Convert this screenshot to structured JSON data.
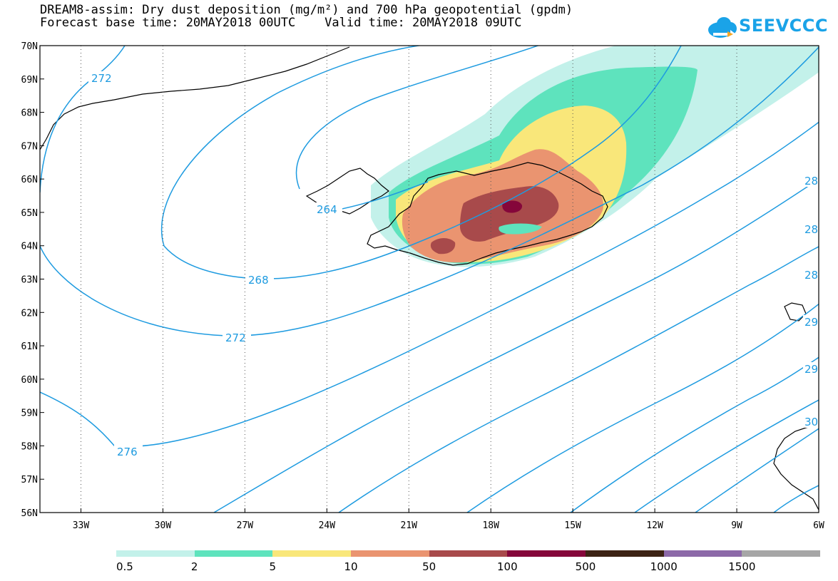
{
  "title": {
    "line1": "DREAM8-assim: Dry dust deposition (mg/m²) and 700 hPa geopotential (gpdm)",
    "line2": "Forecast base time: 20MAY2018 00UTC    Valid time: 20MAY2018 09UTC"
  },
  "logo": {
    "text": "SEEVCCC",
    "icon": "cloud-arrow-icon",
    "color": "#1aa3e8"
  },
  "map": {
    "lat_labels": [
      "70N",
      "69N",
      "68N",
      "67N",
      "66N",
      "65N",
      "64N",
      "63N",
      "62N",
      "61N",
      "60N",
      "59N",
      "58N",
      "57N",
      "56N"
    ],
    "lon_labels": [
      "33W",
      "30W",
      "27W",
      "24W",
      "21W",
      "18W",
      "15W",
      "12W",
      "9W",
      "6W"
    ],
    "lon_range": [
      -34.5,
      -6
    ],
    "lat_range": [
      56,
      70
    ],
    "contour_color": "#1e9be0",
    "contour_labels": [
      "272",
      "264",
      "268",
      "272",
      "276",
      "28",
      "28",
      "28",
      "29",
      "29",
      "30"
    ]
  },
  "legend": {
    "colors": [
      "#c3f1ea",
      "#5ee3bd",
      "#f9e77a",
      "#ea9470",
      "#a84a4b",
      "#85063a",
      "#3c2314",
      "#8c69a8",
      "#a6a6a6"
    ],
    "labels": [
      "0.5",
      "2",
      "5",
      "10",
      "50",
      "100",
      "500",
      "1000",
      "1500"
    ]
  }
}
